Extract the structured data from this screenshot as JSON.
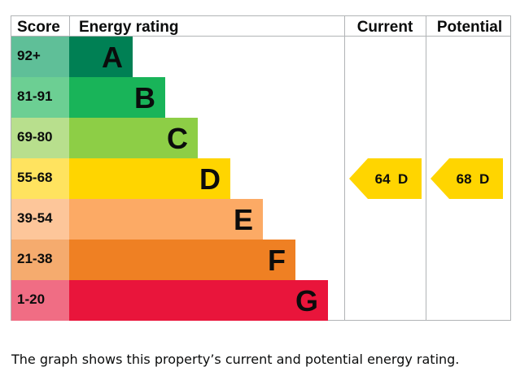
{
  "chart_data": {
    "type": "bar",
    "headers": {
      "score": "Score",
      "rating": "Energy rating",
      "current": "Current",
      "potential": "Potential"
    },
    "bands": [
      {
        "letter": "A",
        "score": "92+",
        "band_color": "#008054",
        "score_color": "#5fbf98"
      },
      {
        "letter": "B",
        "score": "81-91",
        "band_color": "#19b459",
        "score_color": "#6ccf93"
      },
      {
        "letter": "C",
        "score": "69-80",
        "band_color": "#8dce46",
        "score_color": "#b8df8d"
      },
      {
        "letter": "D",
        "score": "55-68",
        "band_color": "#ffd500",
        "score_color": "#ffe35f"
      },
      {
        "letter": "E",
        "score": "39-54",
        "band_color": "#fcaa65",
        "score_color": "#fdc69a"
      },
      {
        "letter": "F",
        "score": "21-38",
        "band_color": "#ef8023",
        "score_color": "#f5ab6e"
      },
      {
        "letter": "G",
        "score": "1-20",
        "band_color": "#e9153b",
        "score_color": "#f06d84"
      }
    ],
    "current": {
      "value": 64,
      "letter": "D",
      "label": "64  D",
      "color": "#ffd500"
    },
    "potential": {
      "value": 68,
      "letter": "D",
      "label": "68  D",
      "color": "#ffd500"
    }
  },
  "caption": "The graph shows this property’s current and potential energy rating."
}
